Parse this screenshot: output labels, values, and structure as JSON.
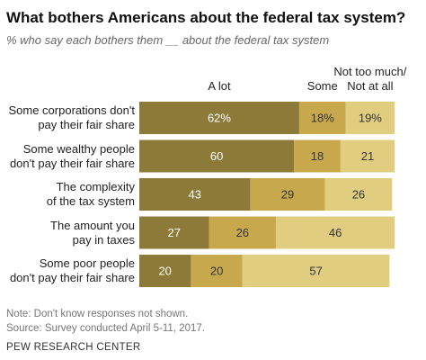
{
  "chart_data": {
    "type": "stacked-bar",
    "title": "What bothers Americans about the federal tax system?",
    "subtitle": "% who say each bothers them __ about the federal tax system",
    "categories": [
      "Some corporations don't\npay their fair share",
      "Some wealthy people\ndon't pay their fair share",
      "The complexity\nof the tax system",
      "The amount you\npay in taxes",
      "Some poor people\ndon't pay their fair share"
    ],
    "series": [
      {
        "name": "A lot",
        "color": "#8d7a38",
        "values": [
          62,
          60,
          43,
          27,
          20
        ],
        "value_labels": [
          "62%",
          "60",
          "43",
          "27",
          "20"
        ]
      },
      {
        "name": "Some",
        "color": "#c8a84c",
        "values": [
          18,
          18,
          29,
          26,
          20
        ],
        "value_labels": [
          "18%",
          "18",
          "29",
          "26",
          "20"
        ]
      },
      {
        "name": "Not too much/\nNot at all",
        "color": "#e1cd80",
        "values": [
          19,
          21,
          26,
          46,
          57
        ],
        "value_labels": [
          "19%",
          "21",
          "26",
          "46",
          "57"
        ]
      }
    ],
    "xlim": [
      0,
      100
    ],
    "notes": [
      "Note: Don't know responses not shown.",
      "Source: Survey conducted April 5-11, 2017."
    ],
    "source": "PEW RESEARCH CENTER"
  }
}
